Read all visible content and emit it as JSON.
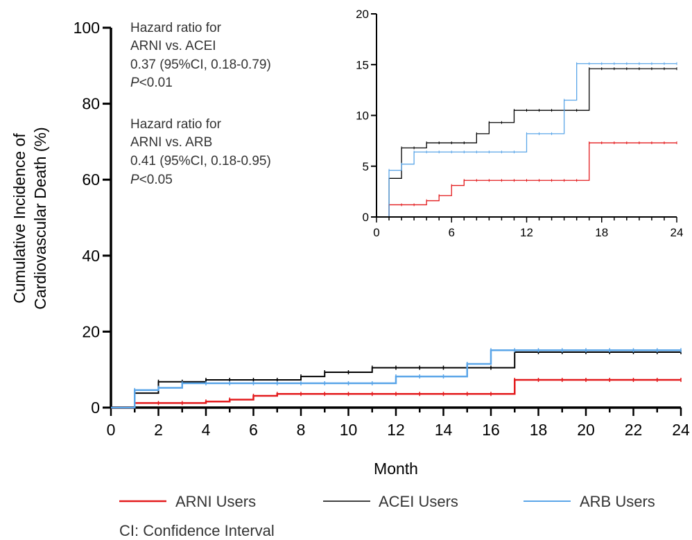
{
  "chart_data": {
    "type": "line",
    "step": true,
    "title": "",
    "xlabel": "Month",
    "ylabel_line1": "Cumulative Incidence of",
    "ylabel_line2": "Cardiovascular Death (%)",
    "xlim": [
      0,
      24
    ],
    "ylim": [
      0,
      100
    ],
    "x_ticks": [
      0,
      2,
      4,
      6,
      8,
      10,
      12,
      14,
      16,
      18,
      20,
      22,
      24
    ],
    "y_ticks": [
      0,
      20,
      40,
      60,
      80,
      100
    ],
    "grid": false,
    "legend_position": "bottom",
    "series": [
      {
        "name": "ARNI Users",
        "color": "#e31a1c",
        "points": [
          [
            0,
            0
          ],
          [
            1,
            1.2
          ],
          [
            4,
            1.6
          ],
          [
            5,
            2.1
          ],
          [
            6,
            3.1
          ],
          [
            7,
            3.6
          ],
          [
            17,
            7.3
          ],
          [
            24,
            7.3
          ]
        ]
      },
      {
        "name": "ACEI Users",
        "color": "#000000",
        "points": [
          [
            0,
            0
          ],
          [
            1,
            3.8
          ],
          [
            2,
            6.8
          ],
          [
            4,
            7.3
          ],
          [
            8,
            8.2
          ],
          [
            9,
            9.3
          ],
          [
            11,
            10.5
          ],
          [
            17,
            14.6
          ],
          [
            24,
            14.6
          ]
        ]
      },
      {
        "name": "ARB Users",
        "color": "#5aa5e8",
        "points": [
          [
            0,
            0
          ],
          [
            1,
            4.6
          ],
          [
            2,
            5.2
          ],
          [
            3,
            6.4
          ],
          [
            12,
            8.2
          ],
          [
            15,
            11.5
          ],
          [
            16,
            15.1
          ],
          [
            24,
            15.1
          ]
        ]
      }
    ],
    "inset": {
      "xlim": [
        0,
        24
      ],
      "ylim": [
        0,
        20
      ],
      "x_ticks": [
        0,
        6,
        12,
        18,
        24
      ],
      "y_ticks": [
        0,
        5,
        10,
        15,
        20
      ]
    },
    "annotations": {
      "hr1_line1": "Hazard ratio for",
      "hr1_line2": "ARNI vs. ACEI",
      "hr1_line3": "0.37  (95%CI, 0.18-0.79)",
      "hr1_p_symbol": "P",
      "hr1_p_value": "<0.01",
      "hr2_line1": "Hazard ratio for",
      "hr2_line2": "ARNI vs. ARB",
      "hr2_line3": "0.41  (95%CI, 0.18-0.95)",
      "hr2_p_symbol": "P",
      "hr2_p_value": "<0.05"
    },
    "footnote": "CI: Confidence Interval"
  }
}
